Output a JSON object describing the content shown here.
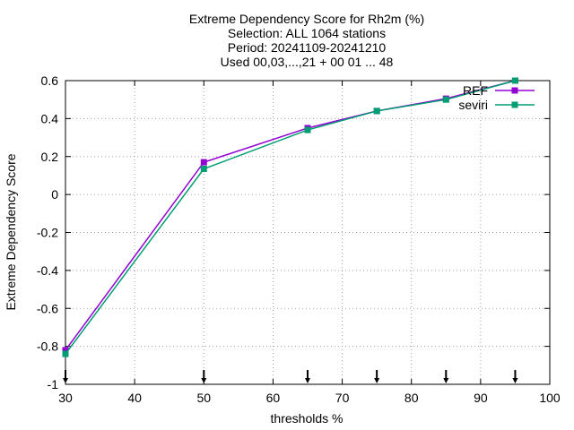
{
  "chart_data": {
    "type": "line",
    "title_lines": [
      "Extreme Dependency Score  for Rh2m (%)",
      "Selection: ALL    1064 stations",
      "Period: 20241109-20241210",
      "Used 00,03,...,21 + 00 01 ... 48"
    ],
    "xlabel": "thresholds %",
    "ylabel": "Extreme Dependency Score",
    "xlim": [
      30,
      100
    ],
    "ylim": [
      -1,
      0.6
    ],
    "xticks": [
      30,
      40,
      50,
      60,
      70,
      80,
      90,
      100
    ],
    "yticks": [
      -1,
      -0.8,
      -0.6,
      -0.4,
      -0.2,
      0,
      0.2,
      0.4,
      0.6
    ],
    "grid": true,
    "legend_position": "top-right",
    "threshold_markers": [
      30,
      50,
      65,
      75,
      85,
      95
    ],
    "series": [
      {
        "name": "REF",
        "color": "#9400d3",
        "marker": "square",
        "x": [
          30,
          50,
          65,
          75,
          85,
          95
        ],
        "y": [
          -0.82,
          0.17,
          0.35,
          0.44,
          0.505,
          0.6
        ]
      },
      {
        "name": "seviri",
        "color": "#009e73",
        "marker": "square",
        "x": [
          30,
          50,
          65,
          75,
          85,
          95
        ],
        "y": [
          -0.84,
          0.135,
          0.34,
          0.44,
          0.5,
          0.6
        ]
      }
    ]
  }
}
